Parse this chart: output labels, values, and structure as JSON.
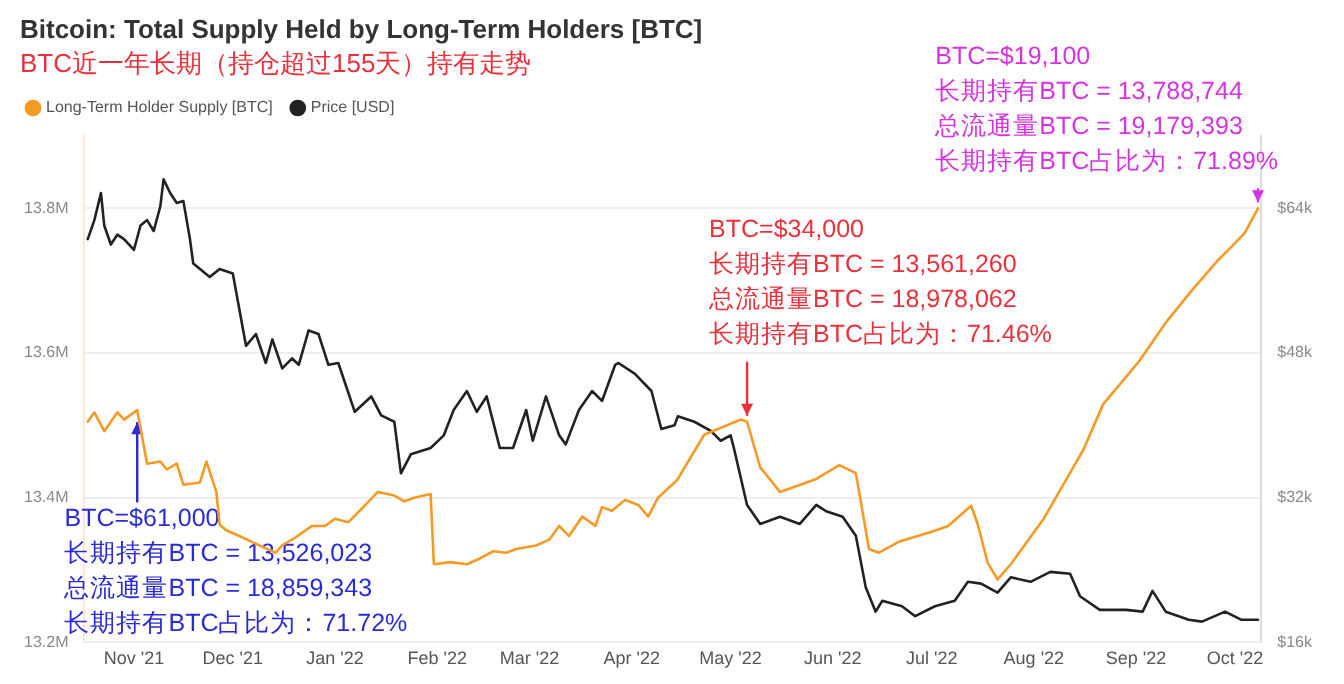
{
  "chart_data": {
    "type": "line",
    "title": "Bitcoin: Total Supply Held by Long-Term Holders [BTC]",
    "subtitle": "BTC近一年长期（持仓超过155天）持有走势",
    "series": [
      {
        "name": "Long-Term Holder Supply [BTC]",
        "color": "#f59a23",
        "x": [
          "2021-10-18",
          "2021-10-20",
          "2021-10-23",
          "2021-10-27",
          "2021-10-29",
          "2021-11-02",
          "2021-11-05",
          "2021-11-09",
          "2021-11-11",
          "2021-11-14",
          "2021-11-16",
          "2021-11-21",
          "2021-11-23",
          "2021-11-26",
          "2021-11-27",
          "2021-11-29",
          "2021-12-04",
          "2021-12-10",
          "2021-12-14",
          "2021-12-16",
          "2021-12-20",
          "2021-12-25",
          "2021-12-29",
          "2022-01-01",
          "2022-01-05",
          "2022-01-10",
          "2022-01-14",
          "2022-01-19",
          "2022-01-22",
          "2022-01-25",
          "2022-01-30",
          "2022-01-31",
          "2022-02-05",
          "2022-02-10",
          "2022-02-14",
          "2022-02-18",
          "2022-02-22",
          "2022-02-25",
          "2022-03-03",
          "2022-03-07",
          "2022-03-10",
          "2022-03-13",
          "2022-03-17",
          "2022-03-21",
          "2022-03-23",
          "2022-03-26",
          "2022-03-30",
          "2022-04-03",
          "2022-04-06",
          "2022-04-09",
          "2022-04-14",
          "2022-04-15",
          "2022-04-23",
          "2022-05-04",
          "2022-05-06",
          "2022-05-10",
          "2022-05-16",
          "2022-05-27",
          "2022-06-03",
          "2022-06-08",
          "2022-06-12",
          "2022-06-15",
          "2022-06-21",
          "2022-07-01",
          "2022-07-06",
          "2022-07-13",
          "2022-07-15",
          "2022-07-18",
          "2022-07-21",
          "2022-07-25",
          "2022-08-04",
          "2022-08-16",
          "2022-08-22",
          "2022-09-02",
          "2022-09-10",
          "2022-09-18",
          "2022-09-26",
          "2022-09-30",
          "2022-10-04",
          "2022-10-08"
        ],
        "values": [
          13505000,
          13518000,
          13492000,
          13518000,
          13508000,
          13521000,
          13447000,
          13450000,
          13439000,
          13447000,
          13418000,
          13421000,
          13450000,
          13408000,
          13363000,
          13355000,
          13345000,
          13332000,
          13324000,
          13334000,
          13345000,
          13361000,
          13361000,
          13371000,
          13366000,
          13389000,
          13408000,
          13403000,
          13395000,
          13400000,
          13405000,
          13308000,
          13311000,
          13308000,
          13316000,
          13326000,
          13324000,
          13329000,
          13334000,
          13342000,
          13361000,
          13347000,
          13374000,
          13361000,
          13387000,
          13382000,
          13397000,
          13390000,
          13374000,
          13400000,
          13421000,
          13426000,
          13487000,
          13508000,
          13505000,
          13442000,
          13408000,
          13426000,
          13445000,
          13434000,
          13329000,
          13324000,
          13339000,
          13353000,
          13361000,
          13389000,
          13363000,
          13310000,
          13287000,
          13308000,
          13371000,
          13466000,
          13529000,
          13589000,
          13642000,
          13687000,
          13729000,
          13747000,
          13766000,
          13800000
        ]
      },
      {
        "name": "Price [USD]",
        "color": "#222222",
        "axis": "y2",
        "x": [
          "2021-10-18",
          "2021-10-20",
          "2021-10-22",
          "2021-10-23",
          "2021-10-25",
          "2021-10-27",
          "2021-10-29",
          "2021-11-01",
          "2021-11-03",
          "2021-11-05",
          "2021-11-07",
          "2021-11-09",
          "2021-11-10",
          "2021-11-12",
          "2021-11-14",
          "2021-11-16",
          "2021-11-18",
          "2021-11-19",
          "2021-11-24",
          "2021-11-27",
          "2021-12-01",
          "2021-12-05",
          "2021-12-08",
          "2021-12-11",
          "2021-12-13",
          "2021-12-16",
          "2021-12-19",
          "2021-12-21",
          "2021-12-24",
          "2021-12-27",
          "2021-12-30",
          "2022-01-02",
          "2022-01-07",
          "2022-01-12",
          "2022-01-15",
          "2022-01-19",
          "2022-01-21",
          "2022-01-24",
          "2022-01-30",
          "2022-02-03",
          "2022-02-06",
          "2022-02-10",
          "2022-02-13",
          "2022-02-16",
          "2022-02-20",
          "2022-02-24",
          "2022-02-28",
          "2022-03-02",
          "2022-03-06",
          "2022-03-10",
          "2022-03-12",
          "2022-03-16",
          "2022-03-20",
          "2022-03-23",
          "2022-03-27",
          "2022-03-28",
          "2022-04-02",
          "2022-04-07",
          "2022-04-10",
          "2022-04-14",
          "2022-04-15",
          "2022-04-20",
          "2022-04-25",
          "2022-04-28",
          "2022-05-01",
          "2022-05-02",
          "2022-05-06",
          "2022-05-10",
          "2022-05-16",
          "2022-05-22",
          "2022-05-27",
          "2022-05-30",
          "2022-06-04",
          "2022-06-08",
          "2022-06-11",
          "2022-06-14",
          "2022-06-16",
          "2022-06-22",
          "2022-06-26",
          "2022-07-02",
          "2022-07-08",
          "2022-07-12",
          "2022-07-16",
          "2022-07-21",
          "2022-07-25",
          "2022-07-31",
          "2022-08-06",
          "2022-08-12",
          "2022-08-15",
          "2022-08-21",
          "2022-08-29",
          "2022-09-03",
          "2022-09-06",
          "2022-09-10",
          "2022-09-17",
          "2022-09-21",
          "2022-09-28",
          "2022-10-03",
          "2022-10-08"
        ],
        "values": [
          60600,
          62700,
          65700,
          62100,
          60000,
          61100,
          60600,
          59400,
          62100,
          62700,
          61500,
          64200,
          67200,
          65700,
          64600,
          64800,
          60600,
          57900,
          56400,
          57300,
          56800,
          48800,
          50100,
          46900,
          49500,
          46300,
          47400,
          46700,
          50500,
          50100,
          46700,
          46900,
          41500,
          43200,
          41100,
          40400,
          34700,
          36800,
          37500,
          38900,
          41700,
          43800,
          41500,
          43200,
          37500,
          37500,
          41700,
          38300,
          43200,
          38900,
          37900,
          41700,
          43800,
          42700,
          46700,
          46900,
          45700,
          43800,
          39600,
          40000,
          41000,
          40400,
          39400,
          38300,
          38900,
          37500,
          31200,
          29100,
          29900,
          29100,
          31200,
          30500,
          29900,
          27800,
          22100,
          19400,
          20600,
          20000,
          18900,
          20000,
          20600,
          22700,
          22500,
          21500,
          23200,
          22700,
          23800,
          23600,
          21100,
          19600,
          19600,
          19400,
          21700,
          19400,
          18500,
          18300,
          19400,
          18500,
          18500
        ]
      }
    ],
    "xlim": [
      "2021-10-17",
      "2022-10-09"
    ],
    "xticks": [
      {
        "value": "2021-11-01",
        "label": "Nov '21"
      },
      {
        "value": "2021-12-01",
        "label": "Dec '21"
      },
      {
        "value": "2022-01-01",
        "label": "Jan '22"
      },
      {
        "value": "2022-02-01",
        "label": "Feb '22"
      },
      {
        "value": "2022-03-01",
        "label": "Mar '22"
      },
      {
        "value": "2022-04-01",
        "label": "Apr '22"
      },
      {
        "value": "2022-05-01",
        "label": "May '22"
      },
      {
        "value": "2022-06-01",
        "label": "Jun '22"
      },
      {
        "value": "2022-07-01",
        "label": "Jul '22"
      },
      {
        "value": "2022-08-01",
        "label": "Aug '22"
      },
      {
        "value": "2022-09-01",
        "label": "Sep '22"
      },
      {
        "value": "2022-10-01",
        "label": "Oct '22"
      }
    ],
    "ylim": [
      13200000,
      13900000
    ],
    "yticks": [
      {
        "value": 13200000,
        "label": "13.2M"
      },
      {
        "value": 13400000,
        "label": "13.4M"
      },
      {
        "value": 13600000,
        "label": "13.6M"
      },
      {
        "value": 13800000,
        "label": "13.8M"
      }
    ],
    "y2lim": [
      16000,
      72000
    ],
    "y2ticks": [
      {
        "value": 16000,
        "label": "$16k"
      },
      {
        "value": 32000,
        "label": "$32k"
      },
      {
        "value": 48000,
        "label": "$48k"
      },
      {
        "value": 64000,
        "label": "$64k"
      }
    ],
    "annotations": [
      {
        "text": "BTC=$61,000\n长期持有BTC = 13,526,023\n总流通量BTC = 18,859,343\n长期持有BTC占比为：71.72%",
        "x": "2021-11-02",
        "y": 13521000
      },
      {
        "text": "BTC=$34,000\n长期持有BTC = 13,561,260\n总流通量BTC = 18,978,062\n长期持有BTC占比为：71.46%",
        "x": "2022-05-06",
        "y": 13505000
      },
      {
        "text": "BTC=$19,100\n长期持有BTC = 13,788,744\n总流通量BTC = 19,179,393\n长期持有BTC占比为：71.89%",
        "x": "2022-10-08",
        "y": 13800000
      }
    ],
    "grid": "y",
    "legend": "top left",
    "marker": "none",
    "line_style": "solid"
  }
}
